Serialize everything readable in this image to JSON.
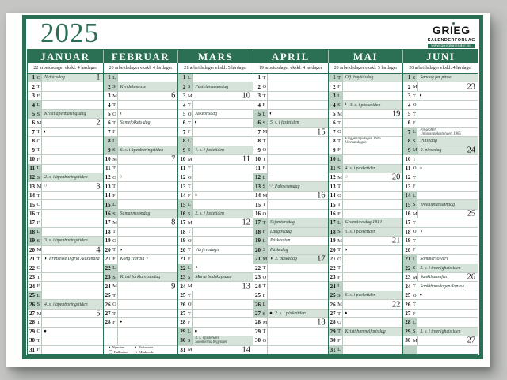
{
  "page": {
    "year": "2025"
  },
  "logo": {
    "name": "GRIEG",
    "subtitle": "KALENDERFORLAG",
    "url": "www.griegkalender.no"
  },
  "colors": {
    "green": "#2b6f55",
    "row_tint": "#d5e3da",
    "cell_tint": "#bcd2c5"
  },
  "legend": {
    "items": [
      {
        "sym": "●",
        "label": "Nymåne"
      },
      {
        "sym": "◯",
        "label": "Fullmåne"
      },
      {
        "sym": "◐",
        "label": "Voksende"
      },
      {
        "sym": "◑",
        "label": "Minkende"
      }
    ]
  },
  "months": [
    {
      "name": "JANUAR",
      "subtitle": "22 arbeidsdager ekskl. 4 lørdager",
      "days": [
        {
          "d": 1,
          "w": "O",
          "t": "hol",
          "l": "Nyttårsdag",
          "wk": 1
        },
        {
          "d": 2,
          "w": "T"
        },
        {
          "d": 3,
          "w": "F"
        },
        {
          "d": 4,
          "w": "L"
        },
        {
          "d": 5,
          "w": "S",
          "l": "Kristi åpenbaringsdag"
        },
        {
          "d": 6,
          "w": "M",
          "wk": 2
        },
        {
          "d": 7,
          "w": "T",
          "m": "◐"
        },
        {
          "d": 8,
          "w": "O"
        },
        {
          "d": 9,
          "w": "T"
        },
        {
          "d": 10,
          "w": "F"
        },
        {
          "d": 11,
          "w": "L"
        },
        {
          "d": 12,
          "w": "S",
          "l": "2. s. i åpenbaringstiden"
        },
        {
          "d": 13,
          "w": "M",
          "m": "○",
          "wk": 3
        },
        {
          "d": 14,
          "w": "T"
        },
        {
          "d": 15,
          "w": "O"
        },
        {
          "d": 16,
          "w": "T"
        },
        {
          "d": 17,
          "w": "F"
        },
        {
          "d": 18,
          "w": "L"
        },
        {
          "d": 19,
          "w": "S",
          "l": "3. s. i åpenbaringstiden"
        },
        {
          "d": 20,
          "w": "M",
          "wk": 4
        },
        {
          "d": 21,
          "w": "T",
          "m": "◑",
          "l": "Prinsesse Ingrid Alexandra"
        },
        {
          "d": 22,
          "w": "O"
        },
        {
          "d": 23,
          "w": "T"
        },
        {
          "d": 24,
          "w": "F"
        },
        {
          "d": 25,
          "w": "L"
        },
        {
          "d": 26,
          "w": "S",
          "l": "4. s. i åpenbaringstiden"
        },
        {
          "d": 27,
          "w": "M",
          "wk": 5
        },
        {
          "d": 28,
          "w": "T"
        },
        {
          "d": 29,
          "w": "O",
          "m": "●"
        },
        {
          "d": 30,
          "w": "T"
        },
        {
          "d": 31,
          "w": "F"
        }
      ]
    },
    {
      "name": "FEBRUAR",
      "subtitle": "20 arbeidsdager ekskl. 4 lørdager",
      "days": [
        {
          "d": 1,
          "w": "L"
        },
        {
          "d": 2,
          "w": "S",
          "l": "Kyndelsmesse"
        },
        {
          "d": 3,
          "w": "M",
          "wk": 6
        },
        {
          "d": 4,
          "w": "T"
        },
        {
          "d": 5,
          "w": "O",
          "m": "◐"
        },
        {
          "d": 6,
          "w": "T",
          "l": "Samefolkets dag"
        },
        {
          "d": 7,
          "w": "F"
        },
        {
          "d": 8,
          "w": "L"
        },
        {
          "d": 9,
          "w": "S",
          "l": "6. s. i åpenbaringstiden"
        },
        {
          "d": 10,
          "w": "M",
          "wk": 7
        },
        {
          "d": 11,
          "w": "T"
        },
        {
          "d": 12,
          "w": "O",
          "m": "○"
        },
        {
          "d": 13,
          "w": "T"
        },
        {
          "d": 14,
          "w": "F"
        },
        {
          "d": 15,
          "w": "L"
        },
        {
          "d": 16,
          "w": "S",
          "l": "Såmannssøndag"
        },
        {
          "d": 17,
          "w": "M",
          "wk": 8
        },
        {
          "d": 18,
          "w": "T"
        },
        {
          "d": 19,
          "w": "O"
        },
        {
          "d": 20,
          "w": "T",
          "m": "◑"
        },
        {
          "d": 21,
          "w": "F",
          "l": "Kong Harald V"
        },
        {
          "d": 22,
          "w": "L"
        },
        {
          "d": 23,
          "w": "S",
          "l": "Kristi forklarelsesdag"
        },
        {
          "d": 24,
          "w": "M",
          "wk": 9
        },
        {
          "d": 25,
          "w": "T"
        },
        {
          "d": 26,
          "w": "O"
        },
        {
          "d": 27,
          "w": "T"
        },
        {
          "d": 28,
          "w": "F",
          "m": "●"
        },
        {},
        {},
        {
          "legend": true
        }
      ]
    },
    {
      "name": "MARS",
      "subtitle": "21 arbeidsdager ekskl. 5 lørdager",
      "days": [
        {
          "d": 1,
          "w": "L"
        },
        {
          "d": 2,
          "w": "S",
          "l": "Fastelavnssøndag"
        },
        {
          "d": 3,
          "w": "M",
          "wk": 10
        },
        {
          "d": 4,
          "w": "T"
        },
        {
          "d": 5,
          "w": "O",
          "l": "Askeonsdag"
        },
        {
          "d": 6,
          "w": "T",
          "m": "◐"
        },
        {
          "d": 7,
          "w": "F"
        },
        {
          "d": 8,
          "w": "L"
        },
        {
          "d": 9,
          "w": "S",
          "l": "1. s. i fastetiden"
        },
        {
          "d": 10,
          "w": "M",
          "wk": 11
        },
        {
          "d": 11,
          "w": "T"
        },
        {
          "d": 12,
          "w": "O"
        },
        {
          "d": 13,
          "w": "T"
        },
        {
          "d": 14,
          "w": "F",
          "m": "○"
        },
        {
          "d": 15,
          "w": "L"
        },
        {
          "d": 16,
          "w": "S",
          "l": "2. s. i fastetiden"
        },
        {
          "d": 17,
          "w": "M",
          "wk": 12
        },
        {
          "d": 18,
          "w": "T"
        },
        {
          "d": 19,
          "w": "O"
        },
        {
          "d": 20,
          "w": "T",
          "l": "Vårjevndøgn"
        },
        {
          "d": 21,
          "w": "F"
        },
        {
          "d": 22,
          "w": "L",
          "m": "◑"
        },
        {
          "d": 23,
          "w": "S",
          "l": "Maria budskapsdag"
        },
        {
          "d": 24,
          "w": "M",
          "wk": 13
        },
        {
          "d": 25,
          "w": "T"
        },
        {
          "d": 26,
          "w": "O"
        },
        {
          "d": 27,
          "w": "T"
        },
        {
          "d": 28,
          "w": "F"
        },
        {
          "d": 29,
          "w": "L",
          "m": "●"
        },
        {
          "d": 30,
          "w": "S",
          "l": "4. s. i fastetiden\nSommertid begynner"
        },
        {
          "d": 31,
          "w": "M",
          "wk": 14
        }
      ]
    },
    {
      "name": "APRIL",
      "subtitle": "19 arbeidsdager ekskl. 4 lørdager",
      "days": [
        {
          "d": 1,
          "w": "T"
        },
        {
          "d": 2,
          "w": "O"
        },
        {
          "d": 3,
          "w": "T"
        },
        {
          "d": 4,
          "w": "F"
        },
        {
          "d": 5,
          "w": "L",
          "m": "◐"
        },
        {
          "d": 6,
          "w": "S",
          "l": "5. s. i fastetiden"
        },
        {
          "d": 7,
          "w": "M",
          "wk": 15
        },
        {
          "d": 8,
          "w": "T"
        },
        {
          "d": 9,
          "w": "O"
        },
        {
          "d": 10,
          "w": "T"
        },
        {
          "d": 11,
          "w": "F"
        },
        {
          "d": 12,
          "w": "L"
        },
        {
          "d": 13,
          "w": "S",
          "m": "○",
          "l": "Palmesøndag"
        },
        {
          "d": 14,
          "w": "M",
          "wk": 16
        },
        {
          "d": 15,
          "w": "T"
        },
        {
          "d": 16,
          "w": "O"
        },
        {
          "d": 17,
          "w": "T",
          "t": "hol",
          "l": "Skjærtorsdag"
        },
        {
          "d": 18,
          "w": "F",
          "t": "hol",
          "l": "Langfredag"
        },
        {
          "d": 19,
          "w": "L",
          "l": "Påskeaften"
        },
        {
          "d": 20,
          "w": "S",
          "l": "Påskedag"
        },
        {
          "d": 21,
          "w": "M",
          "t": "hol",
          "m": "◑",
          "l": "2. påskedag",
          "wk": 17
        },
        {
          "d": 22,
          "w": "T"
        },
        {
          "d": 23,
          "w": "O"
        },
        {
          "d": 24,
          "w": "T"
        },
        {
          "d": 25,
          "w": "F"
        },
        {
          "d": 26,
          "w": "L"
        },
        {
          "d": 27,
          "w": "S",
          "m": "●",
          "l": "2. s. i påsketiden"
        },
        {
          "d": 28,
          "w": "M",
          "wk": 18
        },
        {
          "d": 29,
          "w": "T"
        },
        {
          "d": 30,
          "w": "O"
        },
        {}
      ]
    },
    {
      "name": "MAI",
      "subtitle": "20 arbeidsdager ekskl. 5 lørdager",
      "days": [
        {
          "d": 1,
          "w": "T",
          "t": "hol",
          "l": "Off. høytidsdag"
        },
        {
          "d": 2,
          "w": "F"
        },
        {
          "d": 3,
          "w": "L"
        },
        {
          "d": 4,
          "w": "S",
          "m": "◐",
          "l": "3. s. i påsketiden"
        },
        {
          "d": 5,
          "w": "M",
          "wk": 19
        },
        {
          "d": 6,
          "w": "T"
        },
        {
          "d": 7,
          "w": "O"
        },
        {
          "d": 8,
          "w": "T",
          "l": "Frigjøringsdagen 1945\nVeterandagen"
        },
        {
          "d": 9,
          "w": "F"
        },
        {
          "d": 10,
          "w": "L"
        },
        {
          "d": 11,
          "w": "S",
          "l": "4. s. i påsketiden"
        },
        {
          "d": 12,
          "w": "M",
          "m": "○",
          "wk": 20
        },
        {
          "d": 13,
          "w": "T"
        },
        {
          "d": 14,
          "w": "O"
        },
        {
          "d": 15,
          "w": "T"
        },
        {
          "d": 16,
          "w": "F"
        },
        {
          "d": 17,
          "w": "L",
          "t": "hol",
          "l": "Grunnlovsdag 1814"
        },
        {
          "d": 18,
          "w": "S",
          "l": "5. s. i påsketiden"
        },
        {
          "d": 19,
          "w": "M",
          "wk": 21
        },
        {
          "d": 20,
          "w": "T",
          "m": "◑"
        },
        {
          "d": 21,
          "w": "O"
        },
        {
          "d": 22,
          "w": "T"
        },
        {
          "d": 23,
          "w": "F"
        },
        {
          "d": 24,
          "w": "L"
        },
        {
          "d": 25,
          "w": "S",
          "l": "6. s. i påsketiden"
        },
        {
          "d": 26,
          "w": "M",
          "wk": 22
        },
        {
          "d": 27,
          "w": "T",
          "m": "●"
        },
        {
          "d": 28,
          "w": "O"
        },
        {
          "d": 29,
          "w": "T",
          "t": "hol",
          "l": "Kristi himmelfartsdag"
        },
        {
          "d": 30,
          "w": "F"
        },
        {
          "d": 31,
          "w": "L"
        }
      ]
    },
    {
      "name": "JUNI",
      "subtitle": "20 arbeidsdager ekskl. 4 lørdager",
      "days": [
        {
          "d": 1,
          "w": "S",
          "l": "Søndag før pinse"
        },
        {
          "d": 2,
          "w": "M",
          "wk": 23
        },
        {
          "d": 3,
          "w": "T",
          "m": "◐"
        },
        {
          "d": 4,
          "w": "O"
        },
        {
          "d": 5,
          "w": "T"
        },
        {
          "d": 6,
          "w": "F"
        },
        {
          "d": 7,
          "w": "L",
          "l": "Pinseaften\nUnionsoppløsningen 1905"
        },
        {
          "d": 8,
          "w": "S",
          "l": "Pinsedag"
        },
        {
          "d": 9,
          "w": "M",
          "t": "hol",
          "l": "2. pinsedag",
          "wk": 24
        },
        {
          "d": 10,
          "w": "T"
        },
        {
          "d": 11,
          "w": "O",
          "m": "○"
        },
        {
          "d": 12,
          "w": "T"
        },
        {
          "d": 13,
          "w": "F"
        },
        {
          "d": 14,
          "w": "L"
        },
        {
          "d": 15,
          "w": "S",
          "l": "Treenighetssøndag"
        },
        {
          "d": 16,
          "w": "M",
          "wk": 25
        },
        {
          "d": 17,
          "w": "T"
        },
        {
          "d": 18,
          "w": "O",
          "m": "◑"
        },
        {
          "d": 19,
          "w": "T"
        },
        {
          "d": 20,
          "w": "F"
        },
        {
          "d": 21,
          "w": "L",
          "l": "Sommersolverv"
        },
        {
          "d": 22,
          "w": "S",
          "l": "2. s. i treenighetstiden"
        },
        {
          "d": 23,
          "w": "M",
          "l": "Sankthansaften",
          "wk": 26
        },
        {
          "d": 24,
          "w": "T",
          "l": "Sankthansdagen/Jonsok"
        },
        {
          "d": 25,
          "w": "O",
          "m": "●"
        },
        {
          "d": 26,
          "w": "T"
        },
        {
          "d": 27,
          "w": "F"
        },
        {
          "d": 28,
          "w": "L"
        },
        {
          "d": 29,
          "w": "S",
          "l": "3. s. i treenighetstiden"
        },
        {
          "d": 30,
          "w": "M",
          "wk": 27
        },
        {
          "t": "sat"
        }
      ]
    }
  ]
}
